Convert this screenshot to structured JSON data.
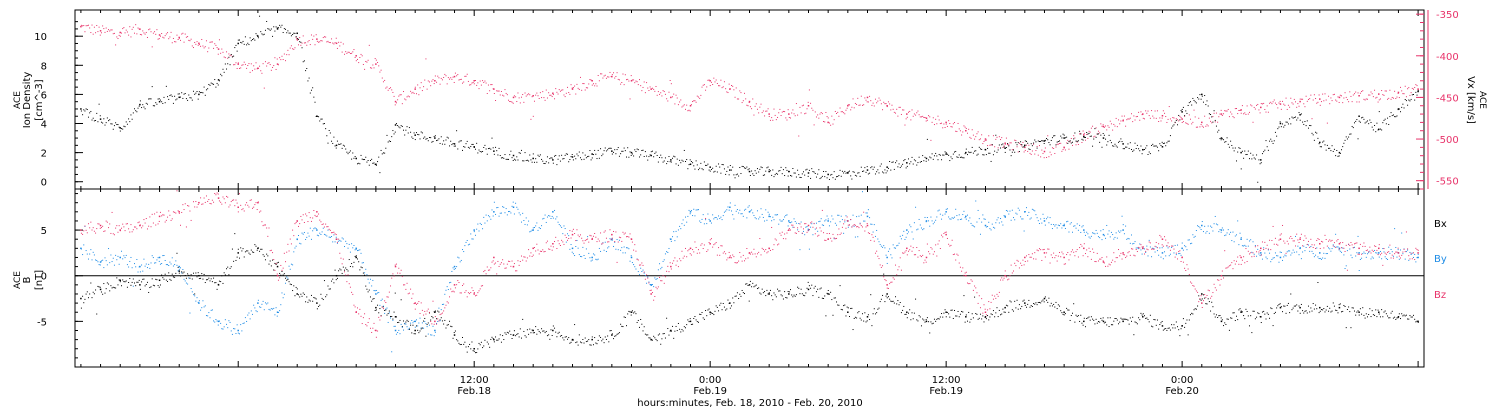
{
  "colors": {
    "black": "#000000",
    "pink": "#e8336a",
    "blue": "#1e8ce6",
    "axis_right": "#e8336a"
  },
  "chart_data": [
    {
      "type": "scatter",
      "panel": "top",
      "ylabel_lines": [
        "ACE",
        "Ion Density",
        "[cm^-3]"
      ],
      "ylabel_right_lines": [
        "ACE",
        "Vx [km/s]"
      ],
      "x_range_hours": [
        -8.3,
        60.3
      ],
      "y_range_left": [
        -0.5,
        11.8
      ],
      "y_range_right": [
        -560,
        -345
      ],
      "y_ticks_left": [
        "0",
        "2",
        "4",
        "6",
        "8",
        "10"
      ],
      "y_ticks_right": [
        "-550",
        "-500",
        "-450",
        "-400",
        "-350"
      ],
      "y_tick_values_left": [
        0,
        2,
        4,
        6,
        8,
        10
      ],
      "y_tick_values_right": [
        -550,
        -500,
        -450,
        -400,
        -350
      ],
      "series": [
        {
          "key": "density",
          "axis": "left",
          "color": "#000000",
          "x": [
            -8,
            -7,
            -6,
            -5,
            -4,
            -3,
            -2,
            -1,
            0,
            1,
            2,
            3,
            4,
            5,
            6,
            7,
            8,
            9,
            10,
            11,
            12,
            13,
            14,
            15,
            16,
            17,
            18,
            19,
            20,
            21,
            22,
            23,
            24,
            25,
            26,
            27,
            28,
            29,
            30,
            31,
            32,
            33,
            34,
            35,
            36,
            37,
            38,
            39,
            40,
            41,
            42,
            43,
            44,
            45,
            46,
            47,
            48,
            49,
            50,
            51,
            52,
            53,
            54,
            55,
            56,
            57,
            58,
            59,
            60
          ],
          "values": [
            5.0,
            4.3,
            3.7,
            5.3,
            5.5,
            5.8,
            6.0,
            7.0,
            9.5,
            10.0,
            10.5,
            10.2,
            4.5,
            2.5,
            1.6,
            1.2,
            3.9,
            3.2,
            3.0,
            2.6,
            2.4,
            2.1,
            1.8,
            1.6,
            1.5,
            1.7,
            1.9,
            2.1,
            2.0,
            1.8,
            1.5,
            1.2,
            1.0,
            0.8,
            0.7,
            0.7,
            0.7,
            0.6,
            0.5,
            0.6,
            0.8,
            1.0,
            1.3,
            1.6,
            1.9,
            2.0,
            2.2,
            2.3,
            2.5,
            2.8,
            3.0,
            3.1,
            3.0,
            2.6,
            2.2,
            2.4,
            4.8,
            6.0,
            3.0,
            2.0,
            1.5,
            4.0,
            4.6,
            2.7,
            2.0,
            4.5,
            3.6,
            5.0,
            6.2
          ]
        },
        {
          "key": "vx",
          "axis": "right",
          "color": "#e8336a",
          "x": [
            -8,
            -7,
            -6,
            -5,
            -4,
            -3,
            -2,
            -1,
            0,
            1,
            2,
            3,
            4,
            5,
            6,
            7,
            8,
            9,
            10,
            11,
            12,
            13,
            14,
            15,
            16,
            17,
            18,
            19,
            20,
            21,
            22,
            23,
            24,
            25,
            26,
            27,
            28,
            29,
            30,
            31,
            32,
            33,
            34,
            35,
            36,
            37,
            38,
            39,
            40,
            41,
            42,
            43,
            44,
            45,
            46,
            47,
            48,
            49,
            50,
            51,
            52,
            53,
            54,
            55,
            56,
            57,
            58,
            59,
            60
          ],
          "values": [
            -365,
            -370,
            -372,
            -368,
            -375,
            -378,
            -385,
            -392,
            -410,
            -415,
            -410,
            -380,
            -380,
            -385,
            -400,
            -410,
            -455,
            -440,
            -430,
            -425,
            -430,
            -440,
            -450,
            -448,
            -445,
            -440,
            -430,
            -425,
            -430,
            -440,
            -450,
            -460,
            -430,
            -440,
            -455,
            -470,
            -470,
            -460,
            -480,
            -460,
            -450,
            -460,
            -470,
            -475,
            -480,
            -490,
            -500,
            -505,
            -510,
            -515,
            -510,
            -495,
            -485,
            -478,
            -470,
            -472,
            -476,
            -480,
            -470,
            -465,
            -462,
            -458,
            -455,
            -452,
            -450,
            -448,
            -446,
            -444,
            -440
          ]
        }
      ]
    },
    {
      "type": "scatter",
      "panel": "bottom",
      "ylabel_lines": [
        "ACE",
        "B",
        "[nT]"
      ],
      "x_range_hours": [
        -8.3,
        60.3
      ],
      "y_range": [
        -10,
        9.5
      ],
      "y_ticks": [
        "-5",
        "0",
        "5"
      ],
      "y_tick_values": [
        -5,
        0,
        5
      ],
      "legend": [
        {
          "label": "Bx",
          "color": "#000000"
        },
        {
          "label": "By",
          "color": "#1e8ce6"
        },
        {
          "label": "Bz",
          "color": "#e8336a"
        }
      ],
      "series": [
        {
          "key": "bx",
          "color": "#000000",
          "x": [
            -8,
            -7,
            -6,
            -5,
            -4,
            -3,
            -2,
            -1,
            0,
            1,
            2,
            3,
            4,
            5,
            6,
            7,
            8,
            9,
            10,
            11,
            12,
            13,
            14,
            15,
            16,
            17,
            18,
            19,
            20,
            21,
            22,
            23,
            24,
            25,
            26,
            27,
            28,
            29,
            30,
            31,
            32,
            33,
            34,
            35,
            36,
            37,
            38,
            39,
            40,
            41,
            42,
            43,
            44,
            45,
            46,
            47,
            48,
            49,
            50,
            51,
            52,
            53,
            54,
            55,
            56,
            57,
            58,
            59,
            60
          ],
          "values": [
            -2.5,
            -1.5,
            -0.5,
            -1.0,
            -0.5,
            0.5,
            0.0,
            -1.0,
            2.5,
            3.0,
            1.0,
            -2.0,
            -3.0,
            0.0,
            2.0,
            -3.5,
            -4.5,
            -6.0,
            -4.0,
            -6.5,
            -8.0,
            -7.0,
            -6.5,
            -6.0,
            -6.0,
            -7.0,
            -7.0,
            -6.5,
            -4.0,
            -7.0,
            -6.0,
            -5.0,
            -4.0,
            -3.0,
            -1.0,
            -2.0,
            -2.0,
            -1.5,
            -2.0,
            -4.0,
            -4.5,
            -2.0,
            -4.0,
            -5.0,
            -4.0,
            -4.5,
            -4.5,
            -3.5,
            -3.0,
            -2.5,
            -4.0,
            -5.0,
            -5.0,
            -5.0,
            -4.5,
            -5.5,
            -5.5,
            -2.0,
            -5.0,
            -4.0,
            -4.5,
            -3.5,
            -3.5,
            -3.5,
            -3.5,
            -4.0,
            -4.0,
            -4.5,
            -5.0
          ]
        },
        {
          "key": "by",
          "color": "#1e8ce6",
          "x": [
            -8,
            -7,
            -6,
            -5,
            -4,
            -3,
            -2,
            -1,
            0,
            1,
            2,
            3,
            4,
            5,
            6,
            7,
            8,
            9,
            10,
            11,
            12,
            13,
            14,
            15,
            16,
            17,
            18,
            19,
            20,
            21,
            22,
            23,
            24,
            25,
            26,
            27,
            28,
            29,
            30,
            31,
            32,
            33,
            34,
            35,
            36,
            37,
            38,
            39,
            40,
            41,
            42,
            43,
            44,
            45,
            46,
            47,
            48,
            49,
            50,
            51,
            52,
            53,
            54,
            55,
            56,
            57,
            58,
            59,
            60
          ],
          "values": [
            3.0,
            1.5,
            2.0,
            1.0,
            2.0,
            1.0,
            -3.0,
            -5.0,
            -6.0,
            -3.0,
            -4.0,
            4.0,
            5.0,
            4.0,
            3.0,
            -2.0,
            -6.0,
            -5.0,
            -6.0,
            1.0,
            5.0,
            7.0,
            7.5,
            5.0,
            7.0,
            3.0,
            2.0,
            4.0,
            2.0,
            -1.0,
            4.0,
            7.0,
            6.0,
            7.5,
            7.0,
            6.5,
            6.0,
            5.0,
            6.0,
            6.0,
            6.5,
            2.0,
            5.0,
            6.0,
            7.0,
            6.5,
            5.5,
            6.5,
            7.0,
            6.0,
            5.5,
            5.0,
            4.5,
            5.0,
            3.0,
            2.5,
            3.0,
            5.5,
            5.0,
            4.0,
            2.5,
            2.0,
            3.0,
            2.5,
            3.0,
            2.5,
            2.5,
            2.5,
            2.0
          ]
        },
        {
          "key": "bz",
          "color": "#e8336a",
          "x": [
            -8,
            -7,
            -6,
            -5,
            -4,
            -3,
            -2,
            -1,
            0,
            1,
            2,
            3,
            4,
            5,
            6,
            7,
            8,
            9,
            10,
            11,
            12,
            13,
            14,
            15,
            16,
            17,
            18,
            19,
            20,
            21,
            22,
            23,
            24,
            25,
            26,
            27,
            28,
            29,
            30,
            31,
            32,
            33,
            34,
            35,
            36,
            37,
            38,
            39,
            40,
            41,
            42,
            43,
            44,
            45,
            46,
            47,
            48,
            49,
            50,
            51,
            52,
            53,
            54,
            55,
            56,
            57,
            58,
            59,
            60
          ],
          "values": [
            5.0,
            5.5,
            5.0,
            5.5,
            6.5,
            7.0,
            8.0,
            8.5,
            7.5,
            8.0,
            0.0,
            6.0,
            7.0,
            4.0,
            -4.0,
            -6.0,
            1.0,
            -3.0,
            -5.0,
            -1.0,
            -2.0,
            2.0,
            1.0,
            3.0,
            3.5,
            4.5,
            4.0,
            4.5,
            4.0,
            -2.0,
            1.0,
            3.0,
            3.5,
            2.0,
            2.5,
            3.0,
            5.0,
            5.5,
            4.0,
            6.0,
            5.5,
            -1.0,
            3.0,
            2.0,
            4.5,
            0.0,
            -4.0,
            0.0,
            2.0,
            2.5,
            2.0,
            3.0,
            1.5,
            2.5,
            3.0,
            4.0,
            2.0,
            -3.0,
            0.0,
            2.0,
            3.0,
            4.0,
            4.0,
            3.5,
            3.5,
            3.0,
            3.0,
            2.5,
            2.5
          ]
        }
      ]
    }
  ],
  "x_axis": {
    "ticks": [
      {
        "hours": 12,
        "top": "12:00",
        "bottom": "Feb.18"
      },
      {
        "hours": 24,
        "top": "0:00",
        "bottom": "Feb.19"
      },
      {
        "hours": 36,
        "top": "12:00",
        "bottom": "Feb.19"
      },
      {
        "hours": 48,
        "top": "0:00",
        "bottom": "Feb.20"
      }
    ],
    "xlabel": "hours:minutes, Feb. 18, 2010 - Feb. 20, 2010"
  }
}
